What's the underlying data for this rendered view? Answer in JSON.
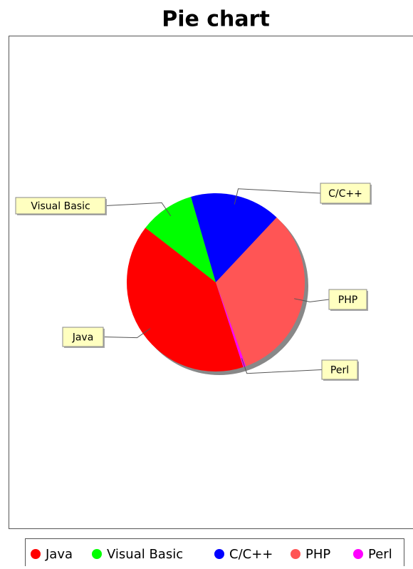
{
  "chart_data": {
    "type": "pie",
    "title": "Pie chart",
    "categories": [
      "Java",
      "Visual Basic",
      "C/C++",
      "PHP",
      "Perl"
    ],
    "values": [
      40.5,
      10,
      16.5,
      32.5,
      0.5
    ],
    "colors": [
      "#ff0000",
      "#00ff00",
      "#0000ff",
      "#ff5555",
      "#ff00ff"
    ],
    "legend": "bottom"
  }
}
